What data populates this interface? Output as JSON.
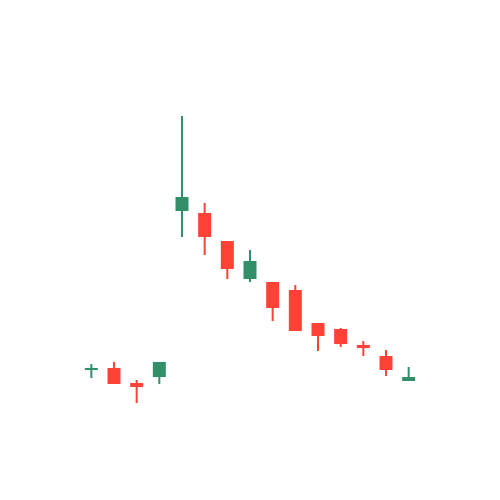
{
  "chart_data": {
    "type": "candlestick",
    "categories": [
      null,
      null,
      null,
      null,
      null,
      null,
      null,
      null,
      null,
      null,
      null,
      null,
      null,
      null,
      null
    ],
    "open": [
      131,
      132,
      117,
      123,
      289,
      287,
      259,
      221,
      218,
      210,
      177,
      171,
      155,
      144,
      119
    ],
    "high": [
      136,
      138,
      120,
      138,
      384,
      297,
      259,
      250,
      218,
      215,
      177,
      172,
      159,
      150,
      133
    ],
    "low": [
      122,
      116,
      97,
      116,
      263,
      245,
      221,
      218,
      179,
      169,
      149,
      153,
      144,
      124,
      119
    ],
    "close": [
      132,
      116,
      113,
      138,
      303,
      263,
      231,
      239,
      192,
      169,
      164,
      156,
      152,
      130,
      123
    ],
    "up_color": "#338f6a",
    "down_color": "#ff4136",
    "ylim": [
      0,
      500
    ]
  }
}
